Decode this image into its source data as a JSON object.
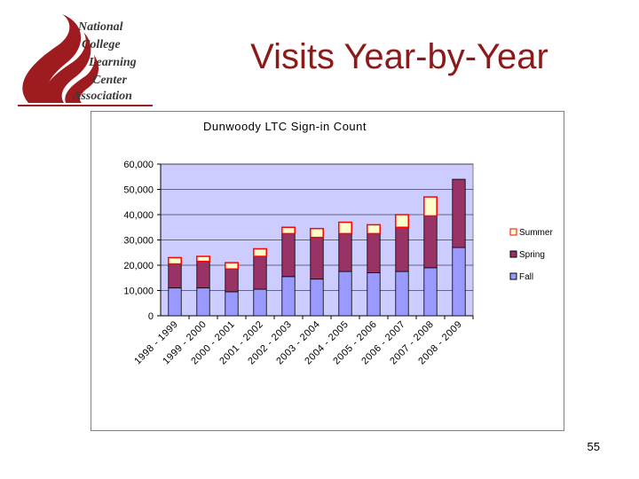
{
  "slide": {
    "title": "Visits Year-by-Year",
    "page_number": "55"
  },
  "logo": {
    "lines": [
      "National",
      "College",
      "Learning",
      "Center",
      "Association"
    ],
    "colors": {
      "flame": "#9e1b20",
      "text": "#3a3a3a"
    }
  },
  "chart_data": {
    "type": "bar",
    "stacked": true,
    "title": "Dunwoody LTC Sign-in Count",
    "xlabel": "",
    "ylabel": "",
    "ylim": [
      0,
      60000
    ],
    "yticks": [
      0,
      10000,
      20000,
      30000,
      40000,
      50000,
      60000
    ],
    "ytick_labels": [
      "0",
      "10,000",
      "20,000",
      "30,000",
      "40,000",
      "50,000",
      "60,000"
    ],
    "grid": true,
    "legend_position": "right",
    "categories": [
      "1998 - 1999",
      "1999 - 2000",
      "2000 - 2001",
      "2001 - 2002",
      "2002 - 2003",
      "2003 - 2004",
      "2004 - 2005",
      "2005 - 2006",
      "2006 - 2007",
      "2007 - 2008",
      "2008 - 2009"
    ],
    "series": [
      {
        "name": "Fall",
        "color": "#9999ff",
        "values": [
          11000,
          11000,
          9500,
          10500,
          15500,
          14500,
          17500,
          17000,
          17500,
          19000,
          27000
        ]
      },
      {
        "name": "Spring",
        "color": "#993366",
        "values": [
          9500,
          10500,
          9000,
          13000,
          17000,
          16500,
          15000,
          15500,
          17500,
          20500,
          27000
        ]
      },
      {
        "name": "Summer",
        "color": "#ffffcc",
        "values": [
          2500,
          2000,
          2500,
          3000,
          2500,
          3500,
          4500,
          3500,
          5000,
          7500,
          0
        ]
      }
    ],
    "colors": {
      "plot_background": "#ccccff",
      "bar_outline": "#000000",
      "summer_outline": "#ff0000"
    }
  }
}
